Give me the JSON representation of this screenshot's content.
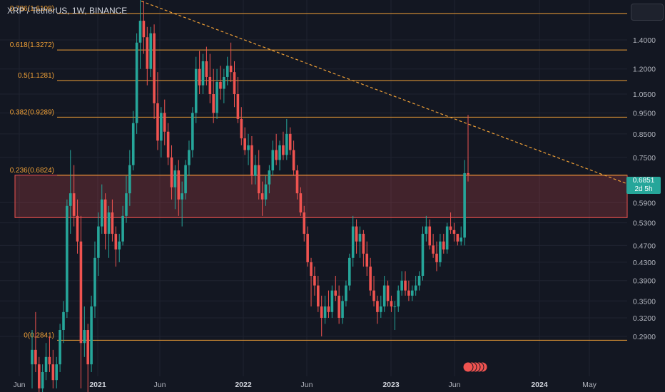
{
  "header": {
    "title": "XRP / TetherUS, 1W, BINANCE"
  },
  "current": {
    "price": "0.6851",
    "countdown": "2d 5h"
  },
  "chart_data": {
    "type": "candlestick",
    "title": "XRP / TetherUS, 1W, BINANCE",
    "y_axis": {
      "scale": "log",
      "ticks": [
        "1.4000",
        "1.2000",
        "1.0500",
        "0.9500",
        "0.8500",
        "0.7500",
        "0.5900",
        "0.5300",
        "0.4700",
        "0.4300",
        "0.3900",
        "0.3500",
        "0.3200",
        "0.2900"
      ]
    },
    "x_axis": {
      "ticks": [
        "Jun",
        "2021",
        "Jun",
        "2022",
        "Jun",
        "2023",
        "Jun",
        "2024",
        "May"
      ],
      "bold": [
        "2021",
        "2022",
        "2023",
        "2024"
      ]
    },
    "fib_levels": [
      {
        "label": "0.786(1.6108)",
        "value": 1.6108
      },
      {
        "label": "0.618(1.3272)",
        "value": 1.3272
      },
      {
        "label": "0.5(1.1281)",
        "value": 1.1281
      },
      {
        "label": "0.382(0.9289)",
        "value": 0.9289
      },
      {
        "label": "0.236(0.6824)",
        "value": 0.6824
      },
      {
        "label": "0(0.2841)",
        "value": 0.2841
      }
    ],
    "zone": {
      "top": 0.6824,
      "bottom": 0.545
    },
    "trendline": {
      "from": [
        "2021-05",
        1.72
      ],
      "to": [
        "2024-07",
        0.6824
      ],
      "style": "dashed"
    },
    "colors": {
      "up": "#26a69a",
      "down": "#ef5350",
      "fib": "#f0a036",
      "zone": "#ef5350",
      "background": "#131722"
    },
    "ohlc_weekly_approx": [
      [
        0.25,
        0.3,
        0.22,
        0.27
      ],
      [
        0.27,
        0.33,
        0.24,
        0.25
      ],
      [
        0.25,
        0.26,
        0.2,
        0.22
      ],
      [
        0.22,
        0.25,
        0.2,
        0.24
      ],
      [
        0.24,
        0.28,
        0.23,
        0.26
      ],
      [
        0.26,
        0.29,
        0.24,
        0.25
      ],
      [
        0.25,
        0.27,
        0.22,
        0.23
      ],
      [
        0.23,
        0.26,
        0.22,
        0.25
      ],
      [
        0.25,
        0.31,
        0.24,
        0.3
      ],
      [
        0.3,
        0.35,
        0.28,
        0.33
      ],
      [
        0.33,
        0.6,
        0.32,
        0.58
      ],
      [
        0.58,
        0.78,
        0.5,
        0.62
      ],
      [
        0.62,
        0.72,
        0.52,
        0.55
      ],
      [
        0.55,
        0.6,
        0.45,
        0.48
      ],
      [
        0.48,
        0.55,
        0.22,
        0.28
      ],
      [
        0.28,
        0.34,
        0.26,
        0.3
      ],
      [
        0.3,
        0.31,
        0.21,
        0.25
      ],
      [
        0.25,
        0.36,
        0.24,
        0.34
      ],
      [
        0.34,
        0.48,
        0.32,
        0.44
      ],
      [
        0.44,
        0.56,
        0.4,
        0.52
      ],
      [
        0.52,
        0.65,
        0.5,
        0.6
      ],
      [
        0.6,
        0.62,
        0.46,
        0.5
      ],
      [
        0.5,
        0.58,
        0.44,
        0.56
      ],
      [
        0.56,
        0.6,
        0.48,
        0.5
      ],
      [
        0.5,
        0.52,
        0.42,
        0.46
      ],
      [
        0.46,
        0.5,
        0.43,
        0.48
      ],
      [
        0.48,
        0.58,
        0.47,
        0.55
      ],
      [
        0.55,
        0.68,
        0.53,
        0.62
      ],
      [
        0.62,
        0.78,
        0.58,
        0.72
      ],
      [
        0.72,
        0.96,
        0.7,
        0.9
      ],
      [
        0.9,
        1.45,
        0.85,
        1.38
      ],
      [
        1.38,
        1.96,
        1.2,
        1.55
      ],
      [
        1.55,
        1.72,
        1.3,
        1.42
      ],
      [
        1.42,
        1.5,
        1.1,
        1.2
      ],
      [
        1.2,
        1.5,
        1.15,
        1.45
      ],
      [
        1.45,
        1.52,
        0.92,
        1.0
      ],
      [
        1.0,
        1.18,
        0.78,
        0.82
      ],
      [
        0.82,
        0.98,
        0.75,
        0.95
      ],
      [
        0.95,
        1.02,
        0.8,
        0.86
      ],
      [
        0.86,
        0.9,
        0.72,
        0.75
      ],
      [
        0.75,
        0.8,
        0.6,
        0.64
      ],
      [
        0.64,
        0.72,
        0.57,
        0.7
      ],
      [
        0.7,
        0.74,
        0.55,
        0.6
      ],
      [
        0.6,
        0.66,
        0.52,
        0.62
      ],
      [
        0.62,
        0.74,
        0.6,
        0.72
      ],
      [
        0.72,
        0.82,
        0.68,
        0.78
      ],
      [
        0.78,
        0.98,
        0.75,
        0.95
      ],
      [
        0.95,
        1.28,
        0.9,
        1.2
      ],
      [
        1.2,
        1.32,
        1.05,
        1.1
      ],
      [
        1.1,
        1.3,
        1.05,
        1.25
      ],
      [
        1.25,
        1.35,
        1.1,
        1.15
      ],
      [
        1.15,
        1.3,
        1.0,
        1.05
      ],
      [
        1.05,
        1.2,
        0.9,
        0.95
      ],
      [
        0.95,
        1.2,
        0.92,
        1.12
      ],
      [
        1.12,
        1.22,
        1.02,
        1.08
      ],
      [
        1.08,
        1.2,
        1.0,
        1.15
      ],
      [
        1.15,
        1.28,
        1.1,
        1.22
      ],
      [
        1.22,
        1.38,
        1.12,
        1.18
      ],
      [
        1.18,
        1.25,
        0.98,
        1.05
      ],
      [
        1.05,
        1.15,
        0.9,
        0.92
      ],
      [
        0.92,
        0.98,
        0.8,
        0.83
      ],
      [
        0.83,
        0.88,
        0.76,
        0.78
      ],
      [
        0.78,
        0.85,
        0.72,
        0.8
      ],
      [
        0.8,
        0.84,
        0.65,
        0.68
      ],
      [
        0.68,
        0.76,
        0.65,
        0.72
      ],
      [
        0.72,
        0.78,
        0.6,
        0.62
      ],
      [
        0.62,
        0.66,
        0.55,
        0.6
      ],
      [
        0.6,
        0.68,
        0.58,
        0.65
      ],
      [
        0.65,
        0.72,
        0.62,
        0.7
      ],
      [
        0.7,
        0.82,
        0.68,
        0.78
      ],
      [
        0.78,
        0.85,
        0.72,
        0.74
      ],
      [
        0.74,
        0.82,
        0.7,
        0.8
      ],
      [
        0.8,
        0.86,
        0.74,
        0.76
      ],
      [
        0.76,
        0.92,
        0.74,
        0.85
      ],
      [
        0.85,
        0.88,
        0.76,
        0.78
      ],
      [
        0.78,
        0.82,
        0.68,
        0.7
      ],
      [
        0.7,
        0.72,
        0.6,
        0.62
      ],
      [
        0.62,
        0.64,
        0.55,
        0.56
      ],
      [
        0.56,
        0.58,
        0.48,
        0.5
      ],
      [
        0.5,
        0.52,
        0.42,
        0.43
      ],
      [
        0.43,
        0.44,
        0.34,
        0.4
      ],
      [
        0.4,
        0.42,
        0.36,
        0.38
      ],
      [
        0.38,
        0.4,
        0.33,
        0.34
      ],
      [
        0.34,
        0.36,
        0.29,
        0.32
      ],
      [
        0.32,
        0.36,
        0.31,
        0.34
      ],
      [
        0.34,
        0.37,
        0.32,
        0.33
      ],
      [
        0.33,
        0.38,
        0.32,
        0.37
      ],
      [
        0.37,
        0.4,
        0.35,
        0.36
      ],
      [
        0.36,
        0.38,
        0.31,
        0.32
      ],
      [
        0.32,
        0.36,
        0.31,
        0.35
      ],
      [
        0.35,
        0.39,
        0.34,
        0.38
      ],
      [
        0.38,
        0.45,
        0.37,
        0.44
      ],
      [
        0.44,
        0.55,
        0.42,
        0.52
      ],
      [
        0.52,
        0.54,
        0.45,
        0.48
      ],
      [
        0.48,
        0.52,
        0.44,
        0.5
      ],
      [
        0.5,
        0.51,
        0.42,
        0.45
      ],
      [
        0.45,
        0.48,
        0.4,
        0.42
      ],
      [
        0.42,
        0.44,
        0.36,
        0.37
      ],
      [
        0.37,
        0.4,
        0.34,
        0.35
      ],
      [
        0.35,
        0.36,
        0.31,
        0.33
      ],
      [
        0.33,
        0.36,
        0.32,
        0.34
      ],
      [
        0.34,
        0.4,
        0.33,
        0.38
      ],
      [
        0.38,
        0.39,
        0.34,
        0.35
      ],
      [
        0.35,
        0.36,
        0.33,
        0.34
      ],
      [
        0.34,
        0.35,
        0.3,
        0.34
      ],
      [
        0.34,
        0.38,
        0.33,
        0.37
      ],
      [
        0.37,
        0.41,
        0.36,
        0.39
      ],
      [
        0.39,
        0.41,
        0.36,
        0.37
      ],
      [
        0.37,
        0.39,
        0.35,
        0.36
      ],
      [
        0.36,
        0.38,
        0.35,
        0.37
      ],
      [
        0.37,
        0.4,
        0.36,
        0.38
      ],
      [
        0.38,
        0.41,
        0.37,
        0.4
      ],
      [
        0.4,
        0.52,
        0.39,
        0.5
      ],
      [
        0.5,
        0.55,
        0.48,
        0.52
      ],
      [
        0.52,
        0.54,
        0.46,
        0.47
      ],
      [
        0.47,
        0.5,
        0.44,
        0.45
      ],
      [
        0.45,
        0.48,
        0.41,
        0.43
      ],
      [
        0.43,
        0.5,
        0.42,
        0.48
      ],
      [
        0.48,
        0.5,
        0.45,
        0.46
      ],
      [
        0.46,
        0.53,
        0.45,
        0.52
      ],
      [
        0.52,
        0.56,
        0.5,
        0.51
      ],
      [
        0.51,
        0.53,
        0.48,
        0.5
      ],
      [
        0.5,
        0.5,
        0.47,
        0.48
      ],
      [
        0.48,
        0.52,
        0.47,
        0.49
      ],
      [
        0.49,
        0.74,
        0.47,
        0.69
      ],
      [
        0.69,
        0.94,
        0.66,
        0.6851
      ]
    ]
  }
}
